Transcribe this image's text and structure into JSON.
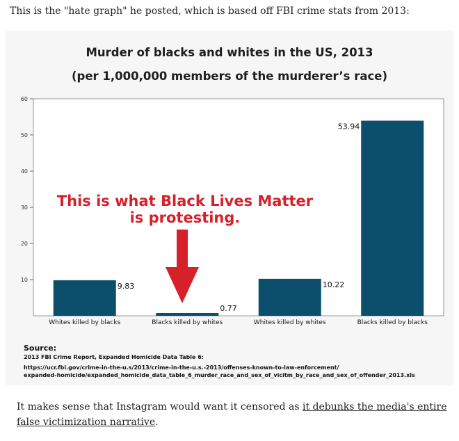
{
  "article": {
    "intro": "This is the \"hate graph\" he posted, which is based off FBI crime stats from 2013:",
    "outro_before": "It makes sense that Instagram would want it censored as ",
    "outro_link": "it debunks the media's entire false victimization narrative",
    "outro_after": "."
  },
  "source": {
    "label": "Source:",
    "line1": "2013 FBI Crime Report, Expanded Homicide Data Table 6:",
    "line2": "https://ucr.fbi.gov/crime-in-the-u.s/2013/crime-in-the-u.s.-2013/offenses-known-to-law-enforcement/",
    "line3": "expanded-homicide/expanded_homicide_data_table_6_murder_race_and_sex_of_vicitm_by_race_and_sex_of_offender_2013.xls"
  },
  "overlay": {
    "line1": "This is what Black Lives Matter",
    "line2": "is protesting.",
    "color": "#d6202a"
  },
  "chart_data": {
    "type": "bar",
    "title": "Murder of blacks and whites in the US, 2013",
    "subtitle": "(per 1,000,000 members of the murderer’s race)",
    "categories": [
      "Whites killed by blacks",
      "Blacks killed by whites",
      "Whites killed by whites",
      "Blacks killed by blacks"
    ],
    "values": [
      9.83,
      0.77,
      10.22,
      53.94
    ],
    "value_labels": [
      "9.83",
      "0.77",
      "10.22",
      "53.94"
    ],
    "y_ticks": [
      "60",
      "50",
      "40",
      "30",
      "20",
      "10"
    ],
    "ylim": [
      0,
      60
    ],
    "grid": false,
    "bar_color": "#0b4f6c",
    "xlabel": "",
    "ylabel": ""
  }
}
